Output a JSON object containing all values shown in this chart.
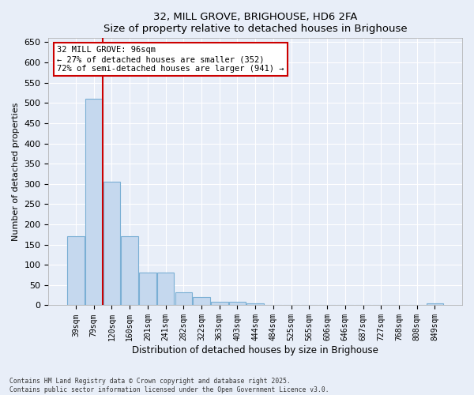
{
  "title": "32, MILL GROVE, BRIGHOUSE, HD6 2FA",
  "subtitle": "Size of property relative to detached houses in Brighouse",
  "xlabel": "Distribution of detached houses by size in Brighouse",
  "ylabel": "Number of detached properties",
  "bar_color": "#c5d8ee",
  "bar_edge_color": "#7aafd4",
  "background_color": "#e8eef8",
  "fig_background_color": "#e8eef8",
  "grid_color": "#ffffff",
  "categories": [
    "39sqm",
    "79sqm",
    "120sqm",
    "160sqm",
    "201sqm",
    "241sqm",
    "282sqm",
    "322sqm",
    "363sqm",
    "403sqm",
    "444sqm",
    "484sqm",
    "525sqm",
    "565sqm",
    "606sqm",
    "646sqm",
    "687sqm",
    "727sqm",
    "768sqm",
    "808sqm",
    "849sqm"
  ],
  "values": [
    170,
    510,
    305,
    170,
    80,
    80,
    33,
    20,
    8,
    8,
    5,
    0,
    0,
    0,
    0,
    0,
    0,
    0,
    0,
    0,
    4
  ],
  "ylim": [
    0,
    660
  ],
  "yticks": [
    0,
    50,
    100,
    150,
    200,
    250,
    300,
    350,
    400,
    450,
    500,
    550,
    600,
    650
  ],
  "property_line_x": 1.5,
  "property_label": "32 MILL GROVE: 96sqm",
  "annotation_line1": "← 27% of detached houses are smaller (352)",
  "annotation_line2": "72% of semi-detached houses are larger (941) →",
  "red_line_color": "#cc0000",
  "footnote1": "Contains HM Land Registry data © Crown copyright and database right 2025.",
  "footnote2": "Contains public sector information licensed under the Open Government Licence v3.0."
}
